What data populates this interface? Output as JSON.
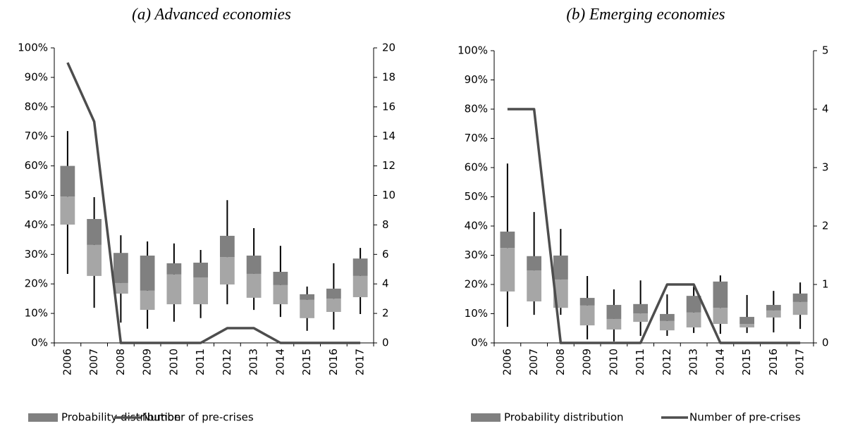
{
  "chart_data": [
    {
      "type": "box",
      "title": "(a) Advanced economies",
      "categories": [
        "2006",
        "2007",
        "2008",
        "2009",
        "2010",
        "2011",
        "2012",
        "2013",
        "2014",
        "2015",
        "2016",
        "2017"
      ],
      "series": [
        {
          "name": "Probability distribution",
          "color": "#808080",
          "lower_color": "#a6a6a6",
          "whisker_color": "#000000",
          "min": [
            23.4,
            11.9,
            6.9,
            4.8,
            7.2,
            8.4,
            13.1,
            11.2,
            8.8,
            4.1,
            4.5,
            9.8
          ],
          "q1": [
            40.1,
            22.7,
            16.7,
            11.2,
            13.1,
            13.1,
            19.8,
            15.3,
            13.1,
            8.4,
            10.5,
            15.5
          ],
          "median": [
            49.6,
            33.2,
            20.3,
            17.7,
            23.2,
            22.2,
            29.1,
            23.4,
            19.6,
            14.6,
            15,
            22.7
          ],
          "q3": [
            60,
            42,
            30.5,
            29.6,
            27,
            27.2,
            36.3,
            29.6,
            24.1,
            16.5,
            18.4,
            28.6
          ],
          "max": [
            71.8,
            49.4,
            36.5,
            34.4,
            33.7,
            31.5,
            48.4,
            38.9,
            32.9,
            19.1,
            27,
            32.2
          ]
        },
        {
          "name": "Number of pre-crises",
          "type": "line",
          "axis": "y2",
          "color": "#4d4d4d",
          "values": [
            19,
            15,
            0,
            0,
            0,
            0,
            1,
            1,
            0,
            0,
            0,
            0
          ]
        }
      ],
      "ylim": [
        0,
        100
      ],
      "yticks": [
        {
          "value": 0,
          "label": "0%"
        },
        {
          "value": 10,
          "label": "10%"
        },
        {
          "value": 20,
          "label": "20%"
        },
        {
          "value": 30,
          "label": "30%"
        },
        {
          "value": 40,
          "label": "40%"
        },
        {
          "value": 50,
          "label": "50%"
        },
        {
          "value": 60,
          "label": "60%"
        },
        {
          "value": 70,
          "label": "70%"
        },
        {
          "value": 80,
          "label": "80%"
        },
        {
          "value": 90,
          "label": "90%"
        },
        {
          "value": 100,
          "label": "100%"
        }
      ],
      "y2lim": [
        0,
        20
      ],
      "y2ticks": [
        0,
        2,
        4,
        6,
        8,
        10,
        12,
        14,
        16,
        18,
        20
      ],
      "legend": "bottom"
    },
    {
      "type": "box",
      "title": "(b) Emerging economies",
      "categories": [
        "2006",
        "2007",
        "2008",
        "2009",
        "2010",
        "2011",
        "2012",
        "2013",
        "2014",
        "2015",
        "2016",
        "2017"
      ],
      "series": [
        {
          "name": "Probability distribution",
          "color": "#808080",
          "lower_color": "#a6a6a6",
          "whisker_color": "#000000",
          "min": [
            5.5,
            9.6,
            9.6,
            1.2,
            0.5,
            2.4,
            2.4,
            3.4,
            3.1,
            3.4,
            3.6,
            4.8
          ],
          "q1": [
            17.6,
            14.2,
            12,
            6,
            4.6,
            7.2,
            4.3,
            5.3,
            6.5,
            5.3,
            8.7,
            9.6
          ],
          "median": [
            32.5,
            24.8,
            21.7,
            12.8,
            8.2,
            10.1,
            7.5,
            10.4,
            12,
            6.5,
            11.1,
            14
          ],
          "q3": [
            38.1,
            29.7,
            29.9,
            15.4,
            13,
            13.3,
            9.9,
            16.1,
            21,
            8.9,
            13,
            16.9
          ],
          "max": [
            61.4,
            44.8,
            39,
            22.9,
            18.3,
            21.4,
            16.6,
            19.3,
            23.1,
            16.4,
            17.8,
            20.7
          ]
        },
        {
          "name": "Number of pre-crises",
          "type": "line",
          "axis": "y2",
          "color": "#4d4d4d",
          "values": [
            4,
            4,
            0,
            0,
            0,
            0,
            1,
            1,
            0,
            0,
            0,
            0
          ]
        }
      ],
      "ylim": [
        0,
        100
      ],
      "yticks": [
        {
          "value": 0,
          "label": "0%"
        },
        {
          "value": 10,
          "label": "10%"
        },
        {
          "value": 20,
          "label": "20%"
        },
        {
          "value": 30,
          "label": "30%"
        },
        {
          "value": 40,
          "label": "40%"
        },
        {
          "value": 50,
          "label": "50%"
        },
        {
          "value": 60,
          "label": "60%"
        },
        {
          "value": 70,
          "label": "70%"
        },
        {
          "value": 80,
          "label": "80%"
        },
        {
          "value": 90,
          "label": "90%"
        },
        {
          "value": 100,
          "label": "100%"
        }
      ],
      "y2lim": [
        0,
        5
      ],
      "y2ticks": [
        0,
        1,
        2,
        3,
        4,
        5
      ],
      "legend": "bottom"
    }
  ]
}
